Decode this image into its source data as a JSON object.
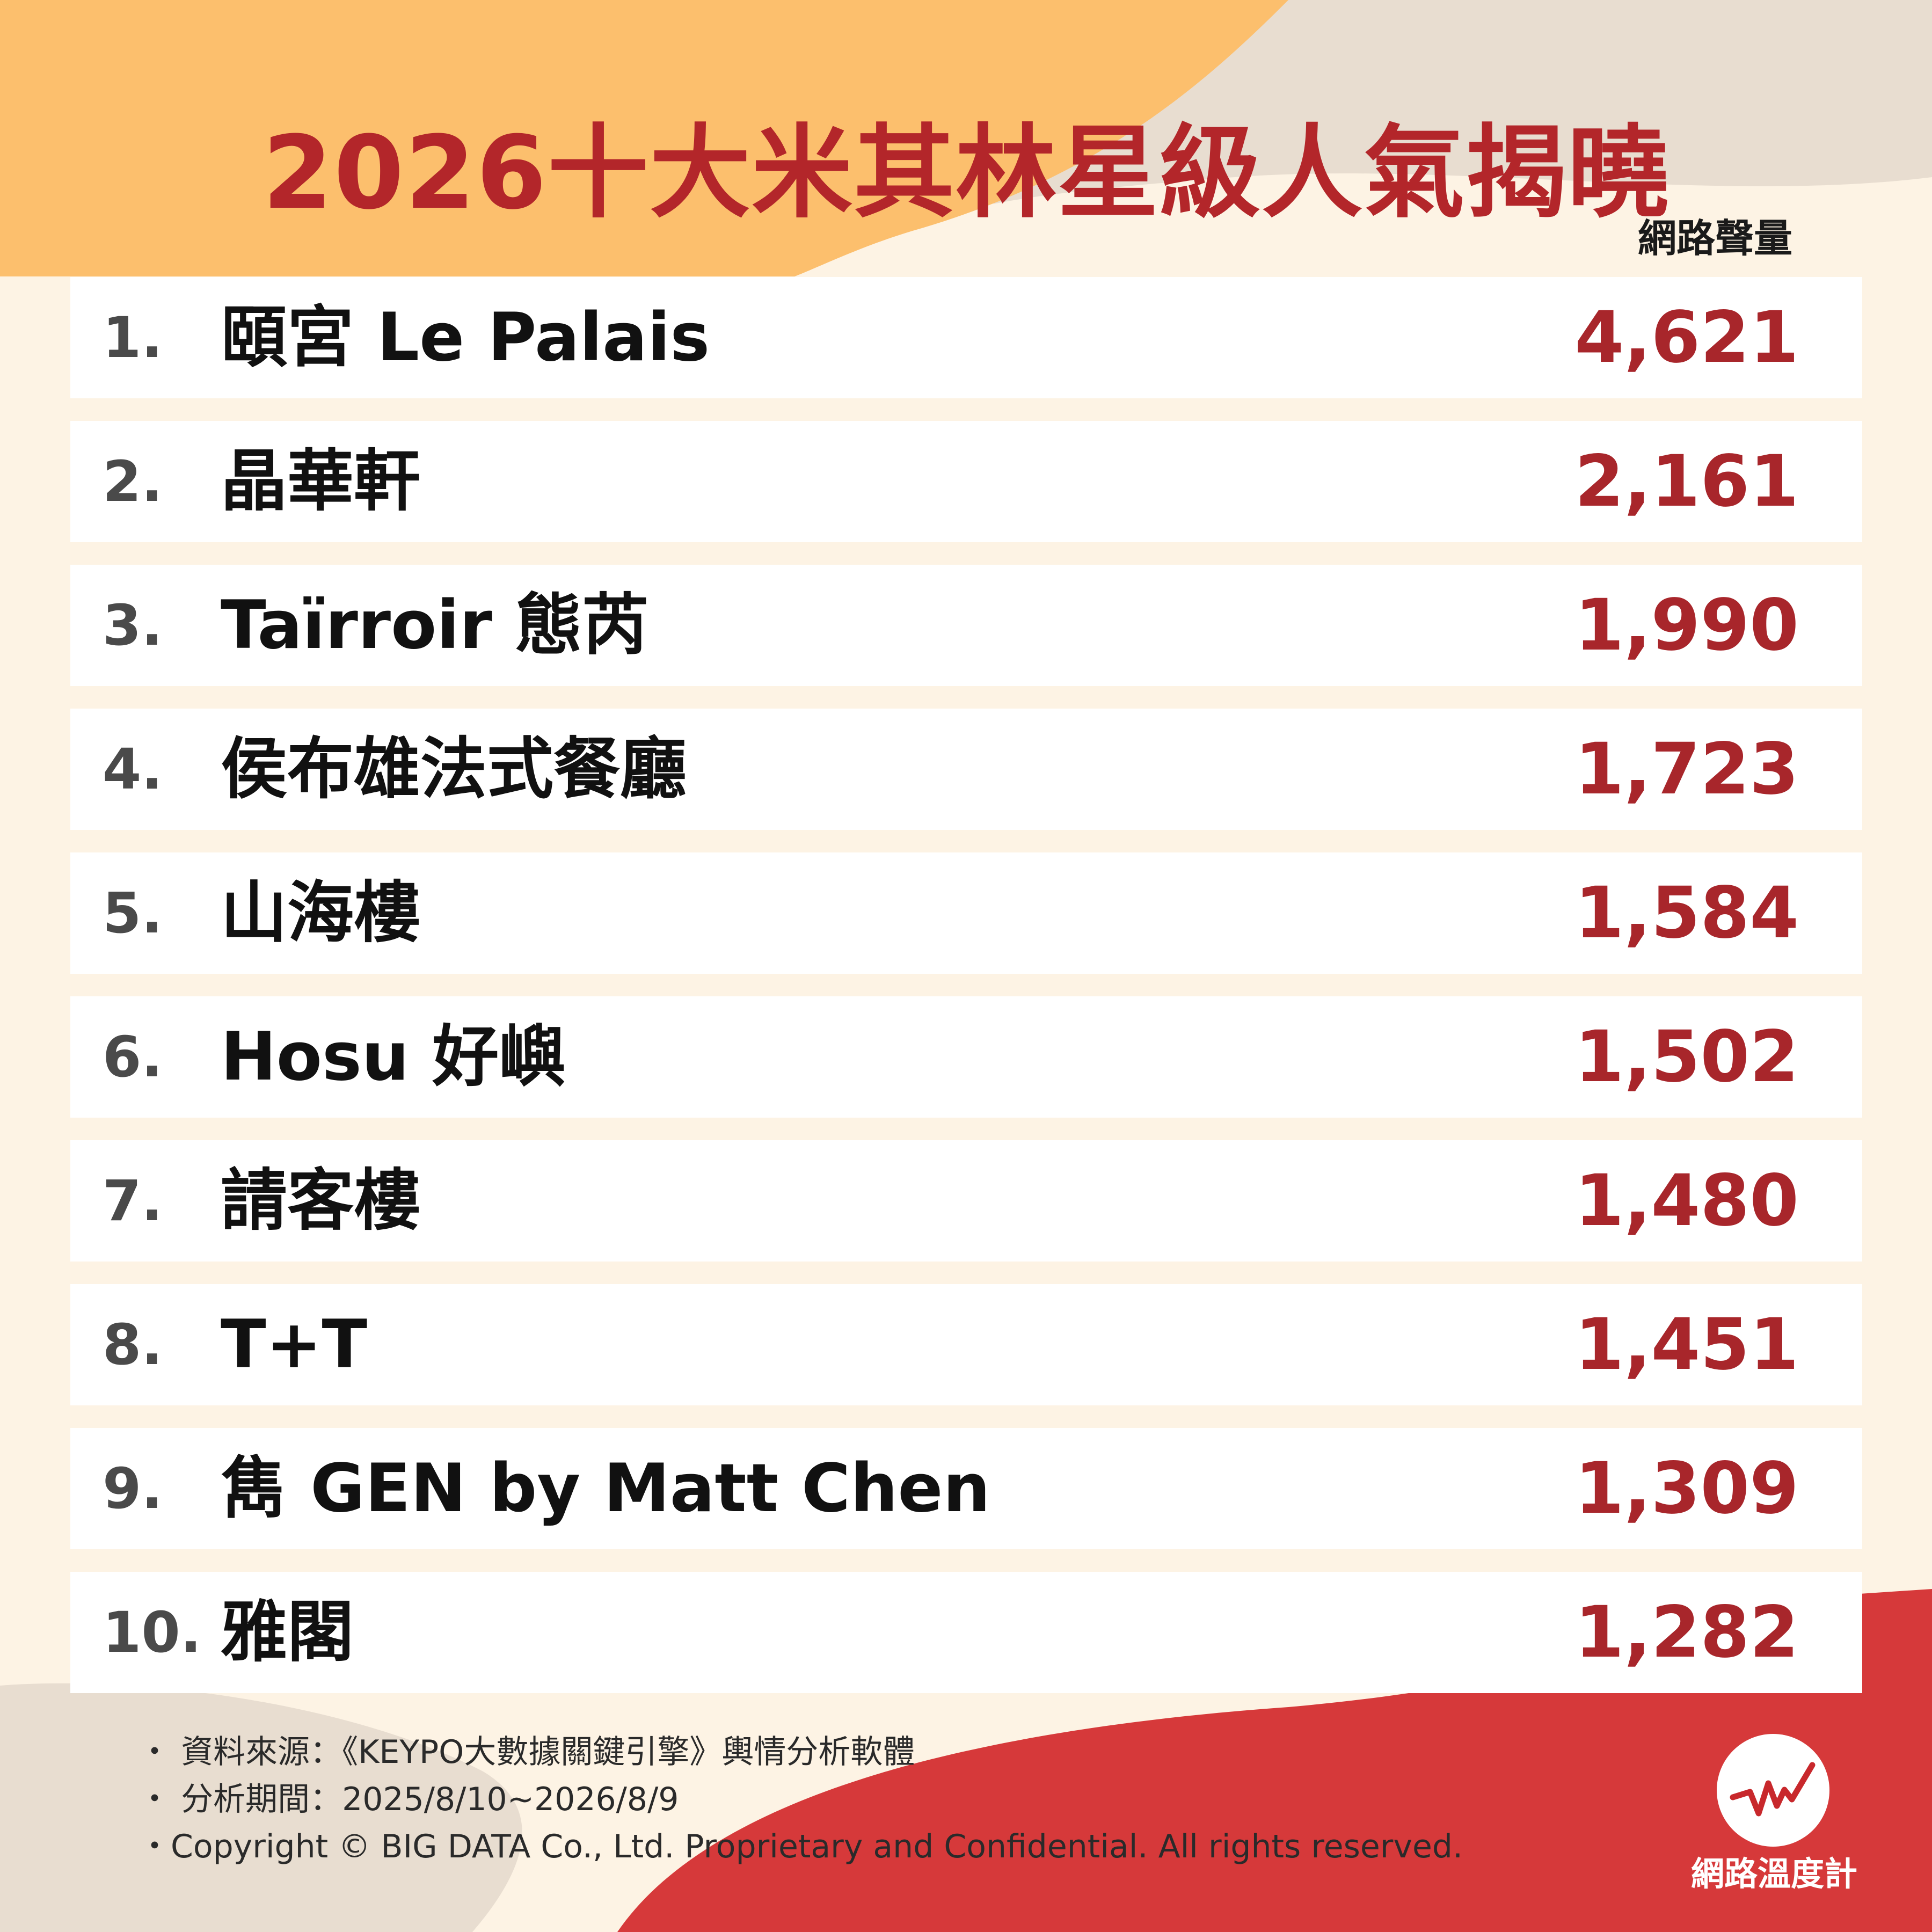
{
  "chart_data": {
    "type": "table",
    "title": "2026十大米其林星級人氣揭曉",
    "value_header": "網路聲量",
    "rows": [
      {
        "rank": "1.",
        "name": "頤宮 Le Palais",
        "value": "4,621"
      },
      {
        "rank": "2.",
        "name": "晶華軒",
        "value": "2,161"
      },
      {
        "rank": "3.",
        "name": "Taïrroir 態芮",
        "value": "1,990"
      },
      {
        "rank": "4.",
        "name": "侯布雄法式餐廳",
        "value": "1,723"
      },
      {
        "rank": "5.",
        "name": "山海樓",
        "value": "1,584"
      },
      {
        "rank": "6.",
        "name": "Hosu 好嶼",
        "value": "1,502"
      },
      {
        "rank": "7.",
        "name": "請客樓",
        "value": "1,480"
      },
      {
        "rank": "8.",
        "name": "T+T",
        "value": "1,451"
      },
      {
        "rank": "9.",
        "name": "雋 GEN by Matt Chen",
        "value": "1,309"
      },
      {
        "rank": "10.",
        "name": "雅閣",
        "value": "1,282"
      }
    ]
  },
  "footer": {
    "source": "・ 資料來源：《KEYPO大數據關鍵引擎》輿情分析軟體",
    "period": "・ 分析期間：2025/8/10~2026/8/9",
    "copyright": "・Copyright © BIG DATA Co., Ltd. Proprietary and Confidential. All rights reserved."
  },
  "brand": {
    "name": "網路溫度計",
    "logo_icon": "pulse-line-icon"
  },
  "colors": {
    "accent_red": "#b3262a",
    "value_red": "#a8262b",
    "orange": "#fcbf6d",
    "beige": "#e8ddd0",
    "background": "#fdf3e4"
  }
}
